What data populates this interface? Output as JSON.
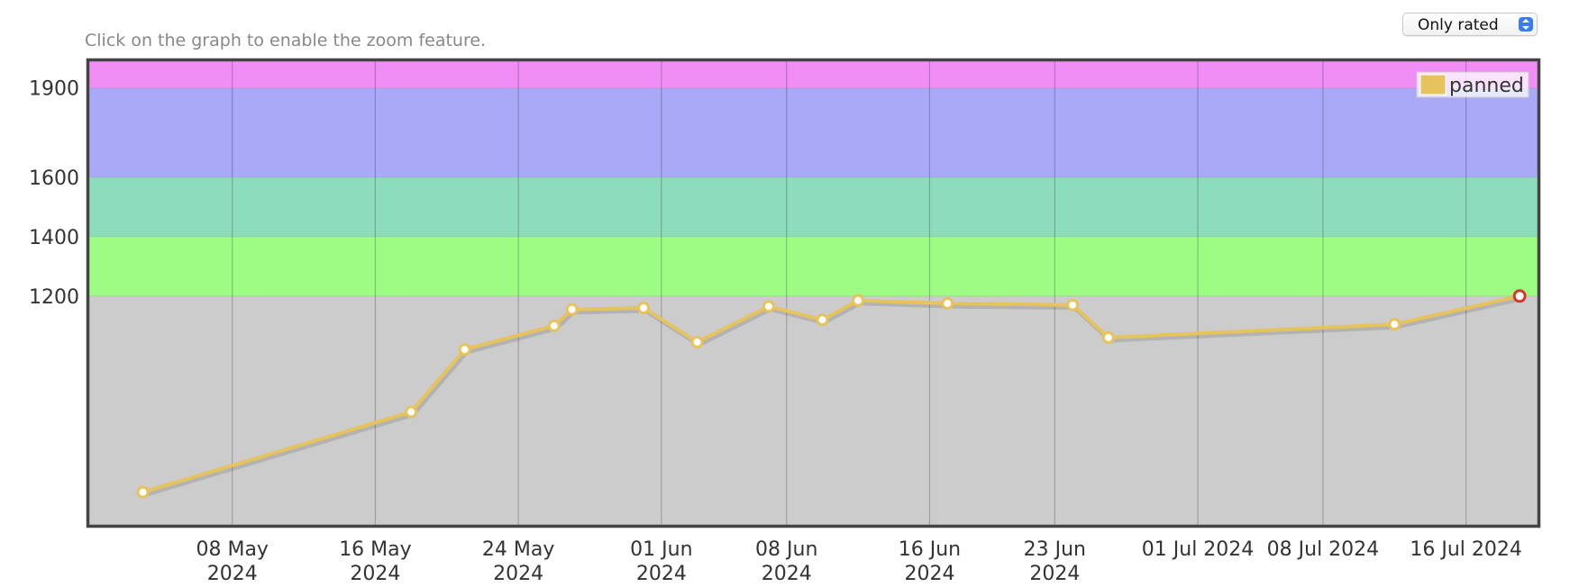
{
  "hint_text": "Click on the graph to enable the zoom feature.",
  "filter": {
    "selected": "Only rated"
  },
  "chart_data": {
    "type": "line",
    "title": "",
    "xlabel": "",
    "ylabel": "",
    "ylim": [
      430,
      1990
    ],
    "xlim": [
      "2024-04-30",
      "2024-07-20"
    ],
    "grid": true,
    "legend_position": "top-right",
    "y_ticks": [
      1200,
      1400,
      1600,
      1900
    ],
    "x_ticks": [
      {
        "date": "2024-05-08",
        "label": [
          "08 May",
          "2024"
        ]
      },
      {
        "date": "2024-05-16",
        "label": [
          "16 May",
          "2024"
        ]
      },
      {
        "date": "2024-05-24",
        "label": [
          "24 May",
          "2024"
        ]
      },
      {
        "date": "2024-06-01",
        "label": [
          "01 Jun",
          "2024"
        ]
      },
      {
        "date": "2024-06-08",
        "label": [
          "08 Jun",
          "2024"
        ]
      },
      {
        "date": "2024-06-16",
        "label": [
          "16 Jun",
          "2024"
        ]
      },
      {
        "date": "2024-06-23",
        "label": [
          "23 Jun",
          "2024"
        ]
      },
      {
        "date": "2024-07-01",
        "label": [
          "01 Jul 2024"
        ]
      },
      {
        "date": "2024-07-08",
        "label": [
          "08 Jul 2024"
        ]
      },
      {
        "date": "2024-07-16",
        "label": [
          "16 Jul 2024"
        ]
      }
    ],
    "bands": [
      {
        "from": 430,
        "to": 1200,
        "color": "#cccccc"
      },
      {
        "from": 1200,
        "to": 1400,
        "color": "#9cfc84"
      },
      {
        "from": 1400,
        "to": 1600,
        "color": "#8ddcbc"
      },
      {
        "from": 1600,
        "to": 1900,
        "color": "#a9a9f8"
      },
      {
        "from": 1900,
        "to": 1990,
        "color": "#f08ef5"
      }
    ],
    "series": [
      {
        "name": "panned",
        "color": "#e6c35c",
        "points": [
          {
            "date": "2024-05-03",
            "value": 540
          },
          {
            "date": "2024-05-18",
            "value": 810
          },
          {
            "date": "2024-05-21",
            "value": 1020
          },
          {
            "date": "2024-05-26",
            "value": 1100
          },
          {
            "date": "2024-05-27",
            "value": 1155
          },
          {
            "date": "2024-05-31",
            "value": 1160
          },
          {
            "date": "2024-06-03",
            "value": 1045
          },
          {
            "date": "2024-06-07",
            "value": 1165
          },
          {
            "date": "2024-06-10",
            "value": 1120
          },
          {
            "date": "2024-06-12",
            "value": 1185
          },
          {
            "date": "2024-06-17",
            "value": 1175
          },
          {
            "date": "2024-06-24",
            "value": 1170
          },
          {
            "date": "2024-06-26",
            "value": 1060
          },
          {
            "date": "2024-07-12",
            "value": 1105
          },
          {
            "date": "2024-07-19",
            "value": 1200
          }
        ]
      }
    ]
  }
}
